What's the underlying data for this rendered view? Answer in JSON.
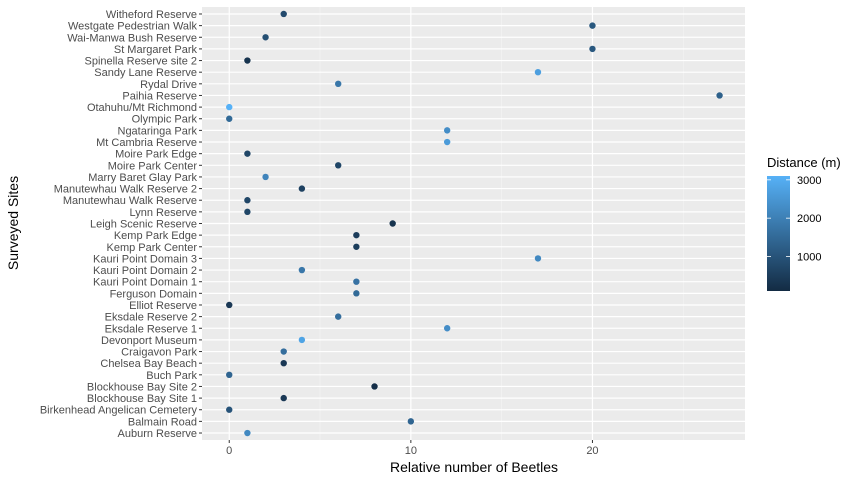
{
  "chart_data": {
    "type": "scatter",
    "title": "",
    "xlabel": "Relative number of Beetles",
    "ylabel": "Surveyed Sites",
    "xlim": [
      -1.5,
      28.4
    ],
    "x_ticks": [
      0,
      10,
      20
    ],
    "grid": true,
    "legend": {
      "title": "Distance (m)",
      "position": "right",
      "type": "colorbar",
      "ticks": [
        1000,
        2000,
        3000
      ],
      "range": [
        100,
        3100
      ],
      "color_low": "#132B43",
      "color_high": "#56B1F7"
    },
    "categories": [
      "Auburn Reserve",
      "Balmain Road",
      "Birkenhead Angelican Cemetery",
      "Blockhouse Bay Site 1",
      "Blockhouse Bay Site 2",
      "Buch Park",
      "Chelsea Bay Beach",
      "Craigavon Park",
      "Devonport Museum",
      "Eksdale Reserve 1",
      "Eksdale Reserve 2",
      "Elliot Reserve",
      "Ferguson Domain",
      "Kauri Point Domain 1",
      "Kauri Point Domain 2",
      "Kauri Point Domain 3",
      "Kemp Park Center",
      "Kemp Park Edge",
      "Leigh Scenic Reserve",
      "Lynn Reserve",
      "Manutewhau Walk Reserve",
      "Manutewhau Walk Reserve 2",
      "Marry Baret Glay Park",
      "Moire Park Center",
      "Moire Park Edge",
      "Mt Cambria Reserve",
      "Ngataringa Park",
      "Olympic Park",
      "Otahuhu/Mt Richmond",
      "Paihia Reserve",
      "Rydal Drive",
      "Sandy Lane Reserve",
      "Spinella Reserve site 2",
      "St Margaret Park",
      "Wai-Manwa Bush Reserve",
      "Westgate Pedestrian Walk",
      "Witheford Reserve"
    ],
    "values": [
      1,
      10,
      0,
      3,
      8,
      0,
      3,
      3,
      4,
      12,
      6,
      0,
      7,
      7,
      4,
      17,
      7,
      7,
      9,
      1,
      1,
      4,
      2,
      6,
      1,
      12,
      12,
      0,
      0,
      27,
      6,
      17,
      1,
      20,
      2,
      20,
      3
    ],
    "distance": [
      2200,
      1400,
      1000,
      400,
      200,
      1400,
      400,
      1600,
      2800,
      2300,
      1600,
      400,
      1500,
      1700,
      1800,
      2200,
      500,
      500,
      300,
      700,
      700,
      600,
      2100,
      700,
      700,
      2600,
      2300,
      1500,
      3100,
      1300,
      1800,
      2700,
      300,
      1100,
      900,
      1100,
      800
    ]
  }
}
